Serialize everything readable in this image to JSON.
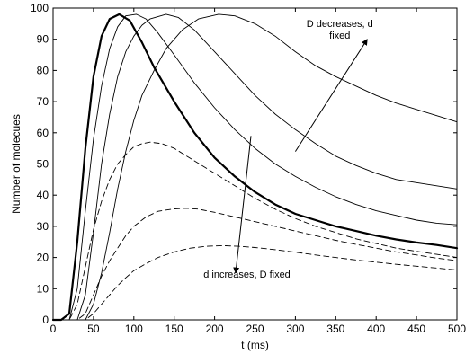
{
  "chart_data": {
    "type": "line",
    "xlabel": "t (ms)",
    "ylabel": "Number of molecues",
    "xlim": [
      0,
      500
    ],
    "ylim": [
      0,
      100
    ],
    "xticks": [
      0,
      50,
      100,
      150,
      200,
      250,
      300,
      350,
      400,
      450,
      500
    ],
    "yticks": [
      0,
      10,
      20,
      30,
      40,
      50,
      60,
      70,
      80,
      90,
      100
    ],
    "grid": false,
    "series": [
      {
        "style": "bold",
        "points": [
          [
            0,
            0
          ],
          [
            10,
            0
          ],
          [
            20,
            2
          ],
          [
            30,
            25
          ],
          [
            40,
            55
          ],
          [
            50,
            78
          ],
          [
            60,
            91
          ],
          [
            70,
            96.5
          ],
          [
            82,
            98
          ],
          [
            95,
            96
          ],
          [
            110,
            89
          ],
          [
            125,
            81
          ],
          [
            150,
            70
          ],
          [
            175,
            60
          ],
          [
            200,
            52
          ],
          [
            225,
            46
          ],
          [
            250,
            41
          ],
          [
            275,
            37
          ],
          [
            300,
            34
          ],
          [
            325,
            32
          ],
          [
            350,
            30
          ],
          [
            375,
            28.5
          ],
          [
            400,
            27
          ],
          [
            425,
            25.8
          ],
          [
            450,
            24.8
          ],
          [
            475,
            24
          ],
          [
            500,
            23
          ]
        ]
      },
      {
        "style": "solid",
        "points": [
          [
            0,
            0
          ],
          [
            20,
            0
          ],
          [
            30,
            10
          ],
          [
            40,
            35
          ],
          [
            50,
            58
          ],
          [
            60,
            75
          ],
          [
            70,
            87
          ],
          [
            80,
            94
          ],
          [
            90,
            97.5
          ],
          [
            103,
            98
          ],
          [
            115,
            96.5
          ],
          [
            130,
            92
          ],
          [
            150,
            85
          ],
          [
            175,
            76
          ],
          [
            200,
            68
          ],
          [
            225,
            61
          ],
          [
            250,
            55
          ],
          [
            275,
            50
          ],
          [
            300,
            46
          ],
          [
            325,
            42.5
          ],
          [
            350,
            39.5
          ],
          [
            375,
            37
          ],
          [
            400,
            35
          ],
          [
            425,
            33.5
          ],
          [
            450,
            32
          ],
          [
            475,
            31
          ],
          [
            500,
            30.5
          ]
        ]
      },
      {
        "style": "solid",
        "points": [
          [
            0,
            0
          ],
          [
            30,
            0
          ],
          [
            40,
            8
          ],
          [
            50,
            28
          ],
          [
            60,
            50
          ],
          [
            70,
            66
          ],
          [
            80,
            78
          ],
          [
            90,
            86
          ],
          [
            100,
            91
          ],
          [
            110,
            94.5
          ],
          [
            120,
            96.5
          ],
          [
            140,
            98
          ],
          [
            155,
            97
          ],
          [
            175,
            93
          ],
          [
            200,
            86
          ],
          [
            225,
            79
          ],
          [
            250,
            72
          ],
          [
            275,
            66
          ],
          [
            300,
            61
          ],
          [
            325,
            56.5
          ],
          [
            350,
            52.5
          ],
          [
            375,
            49.5
          ],
          [
            400,
            47
          ],
          [
            425,
            45
          ],
          [
            450,
            44
          ],
          [
            475,
            43
          ],
          [
            500,
            42
          ]
        ]
      },
      {
        "style": "solid",
        "points": [
          [
            0,
            0
          ],
          [
            40,
            0
          ],
          [
            50,
            5
          ],
          [
            60,
            15
          ],
          [
            70,
            28
          ],
          [
            80,
            42
          ],
          [
            90,
            54
          ],
          [
            100,
            64
          ],
          [
            110,
            72
          ],
          [
            125,
            80
          ],
          [
            140,
            87
          ],
          [
            160,
            93
          ],
          [
            180,
            96.5
          ],
          [
            205,
            98
          ],
          [
            225,
            97.5
          ],
          [
            250,
            95
          ],
          [
            275,
            91
          ],
          [
            300,
            86
          ],
          [
            325,
            81.5
          ],
          [
            350,
            78
          ],
          [
            375,
            75
          ],
          [
            400,
            72
          ],
          [
            425,
            69.5
          ],
          [
            450,
            67.5
          ],
          [
            475,
            65.5
          ],
          [
            500,
            63.5
          ]
        ]
      },
      {
        "style": "dashed",
        "points": [
          [
            0,
            0
          ],
          [
            20,
            0
          ],
          [
            30,
            5
          ],
          [
            40,
            17
          ],
          [
            50,
            29
          ],
          [
            60,
            38
          ],
          [
            70,
            45
          ],
          [
            80,
            50
          ],
          [
            90,
            53
          ],
          [
            100,
            55.5
          ],
          [
            110,
            56.5
          ],
          [
            120,
            57
          ],
          [
            135,
            56.5
          ],
          [
            150,
            55
          ],
          [
            175,
            51
          ],
          [
            200,
            47
          ],
          [
            225,
            43
          ],
          [
            250,
            39
          ],
          [
            275,
            35.5
          ],
          [
            300,
            32.5
          ],
          [
            325,
            30
          ],
          [
            350,
            28
          ],
          [
            375,
            26
          ],
          [
            400,
            24.5
          ],
          [
            425,
            23
          ],
          [
            450,
            22
          ],
          [
            475,
            21
          ],
          [
            500,
            20
          ]
        ]
      },
      {
        "style": "dashed",
        "points": [
          [
            0,
            0
          ],
          [
            30,
            0
          ],
          [
            40,
            2
          ],
          [
            50,
            8
          ],
          [
            60,
            14
          ],
          [
            70,
            19
          ],
          [
            80,
            23
          ],
          [
            90,
            27
          ],
          [
            100,
            30
          ],
          [
            115,
            33
          ],
          [
            130,
            34.8
          ],
          [
            150,
            35.6
          ],
          [
            165,
            35.8
          ],
          [
            180,
            35.5
          ],
          [
            200,
            34.5
          ],
          [
            225,
            33
          ],
          [
            250,
            31.5
          ],
          [
            275,
            30
          ],
          [
            300,
            28.5
          ],
          [
            325,
            27
          ],
          [
            350,
            25.5
          ],
          [
            375,
            24.2
          ],
          [
            400,
            23
          ],
          [
            425,
            21.8
          ],
          [
            450,
            20.8
          ],
          [
            475,
            19.8
          ],
          [
            500,
            19
          ]
        ]
      },
      {
        "style": "dashed",
        "points": [
          [
            0,
            0
          ],
          [
            40,
            0
          ],
          [
            50,
            2
          ],
          [
            60,
            5
          ],
          [
            70,
            8
          ],
          [
            80,
            11
          ],
          [
            90,
            13.5
          ],
          [
            100,
            15.8
          ],
          [
            115,
            18
          ],
          [
            130,
            20
          ],
          [
            150,
            21.8
          ],
          [
            170,
            23
          ],
          [
            190,
            23.6
          ],
          [
            210,
            23.8
          ],
          [
            230,
            23.6
          ],
          [
            250,
            23.2
          ],
          [
            275,
            22.5
          ],
          [
            300,
            21.7
          ],
          [
            325,
            20.8
          ],
          [
            350,
            20
          ],
          [
            375,
            19.2
          ],
          [
            400,
            18.5
          ],
          [
            425,
            17.8
          ],
          [
            450,
            17.2
          ],
          [
            475,
            16.6
          ],
          [
            500,
            16
          ]
        ]
      }
    ],
    "annotations": [
      {
        "lines": [
          "D decreases, d",
          "fixed"
        ],
        "x": 355,
        "y": 94
      },
      {
        "lines": [
          "d increases, D fixed"
        ],
        "x": 240,
        "y": 13.5
      }
    ],
    "arrows": [
      {
        "from": [
          300,
          54
        ],
        "to": [
          389,
          90
        ]
      },
      {
        "from": [
          245,
          59
        ],
        "to": [
          226,
          15
        ]
      }
    ]
  }
}
